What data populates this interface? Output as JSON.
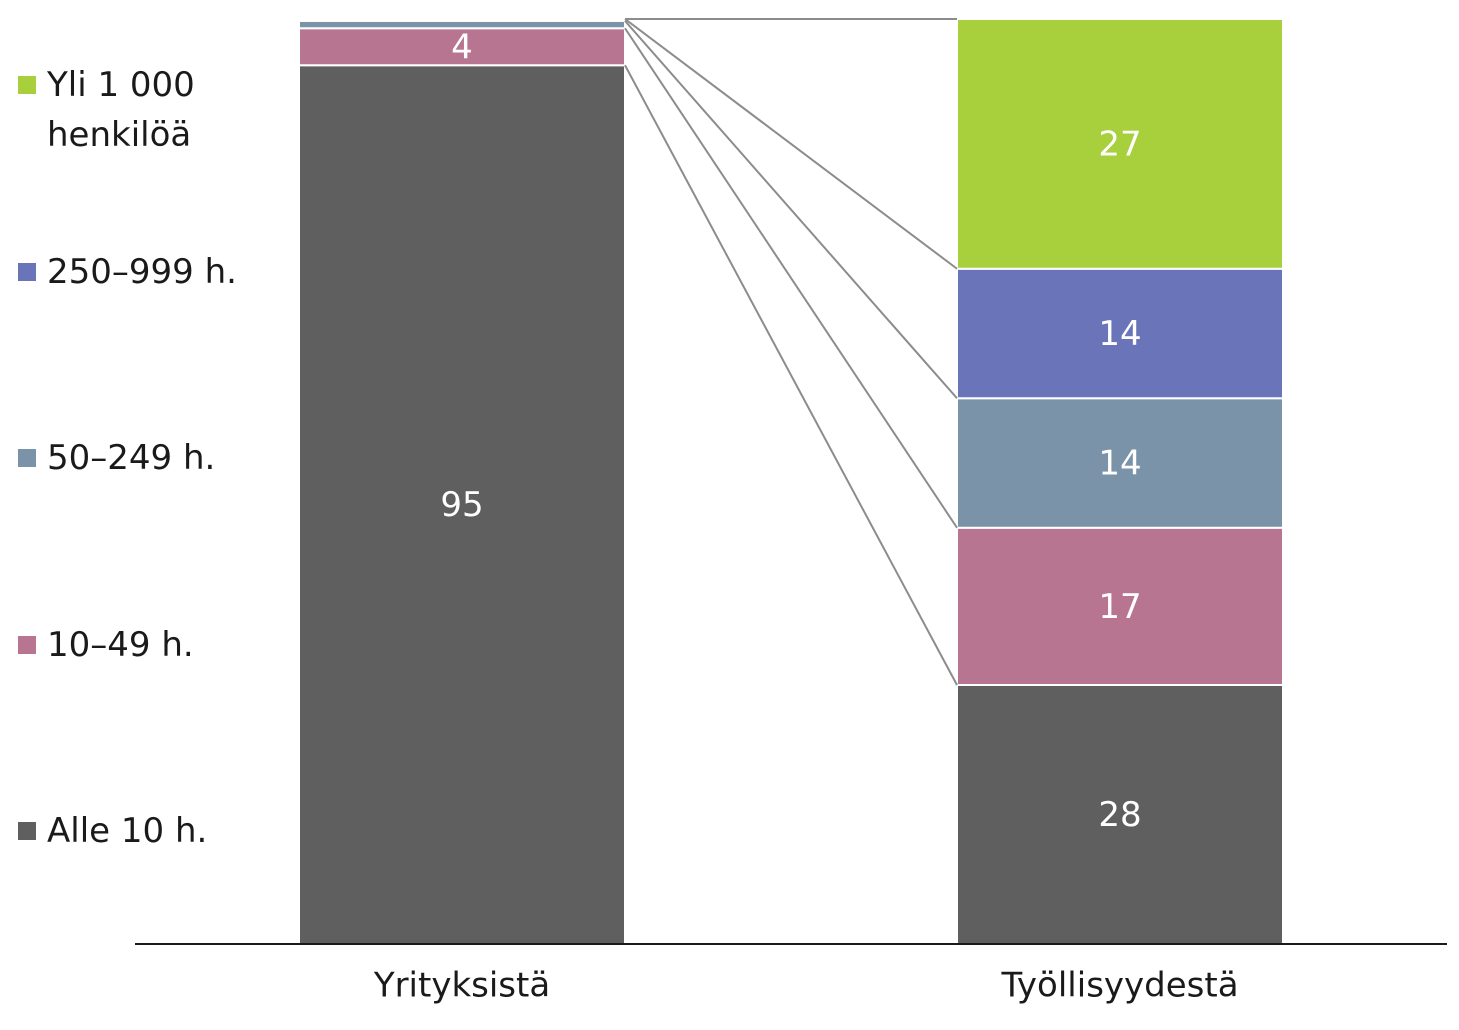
{
  "chart_data": {
    "type": "stacked-bar",
    "categories": [
      "Yrityksistä",
      "Työllisyydestä"
    ],
    "series": [
      {
        "name": "Alle 10 h.",
        "color": "#5f5f5f",
        "values": [
          95,
          28
        ]
      },
      {
        "name": "10–49 h.",
        "color": "#b87591",
        "values": [
          4,
          17
        ]
      },
      {
        "name": "50–249 h.",
        "color": "#7a93a8",
        "values": [
          0.8,
          14
        ]
      },
      {
        "name": "250–999 h.",
        "color": "#6a75b9",
        "values": [
          0.2,
          14
        ]
      },
      {
        "name": "Yli 1 000 henkilöä",
        "color": "#a8cf3c",
        "values": [
          0,
          27
        ]
      }
    ],
    "ylim": [
      0,
      100
    ]
  }
}
